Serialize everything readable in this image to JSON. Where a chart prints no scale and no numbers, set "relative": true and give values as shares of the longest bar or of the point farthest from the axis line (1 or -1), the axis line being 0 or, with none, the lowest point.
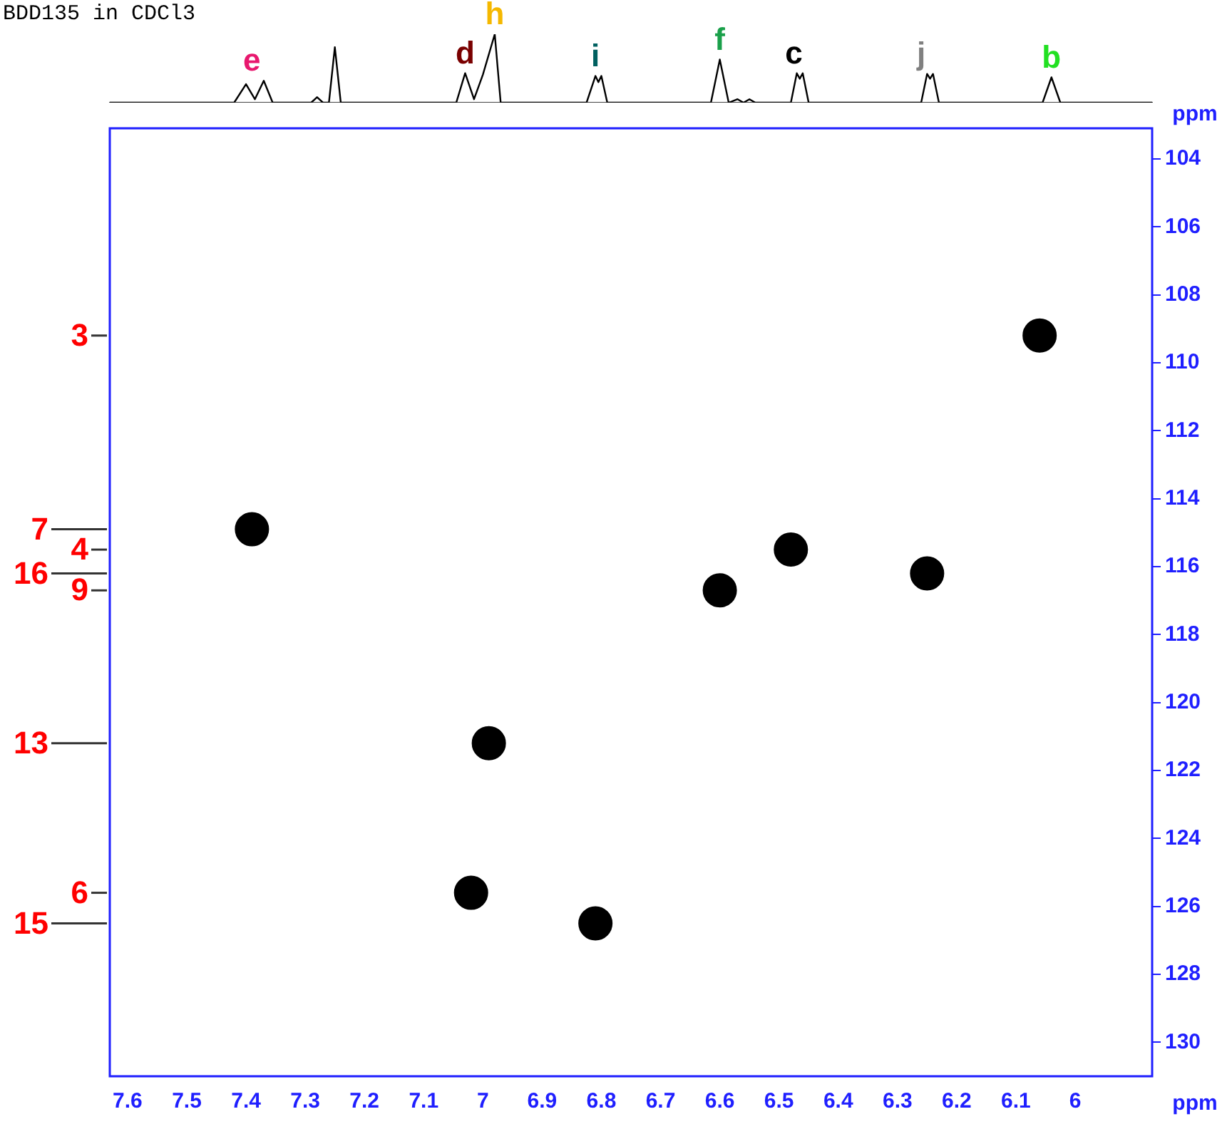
{
  "chart_data": [
    {
      "type": "line",
      "title": "BDD135 in CDCl3",
      "relative": true,
      "tick_labels": false,
      "xlim": [
        7.63,
        5.87
      ],
      "legend": false,
      "grid": false,
      "marker": "none",
      "series": [
        {
          "color": "#000000",
          "x": [
            7.63,
            7.42,
            7.4,
            7.385,
            7.37,
            7.355,
            7.29,
            7.28,
            7.27,
            7.26,
            7.25,
            7.24,
            7.045,
            7.03,
            7.015,
            7.0,
            6.98,
            6.97,
            6.825,
            6.81,
            6.805,
            6.8,
            6.79,
            6.615,
            6.6,
            6.585,
            6.57,
            6.56,
            6.55,
            6.54,
            6.48,
            6.47,
            6.465,
            6.46,
            6.45,
            6.26,
            6.25,
            6.245,
            6.24,
            6.23,
            6.055,
            6.04,
            6.025,
            5.87
          ],
          "values": [
            0,
            0,
            0.27,
            0.05,
            0.32,
            0,
            0,
            0.08,
            0,
            0,
            0.81,
            0,
            0,
            0.43,
            0.05,
            0.41,
            1.0,
            0,
            0,
            0.39,
            0.3,
            0.39,
            0,
            0,
            0.63,
            0,
            0.05,
            0,
            0.05,
            0,
            0,
            0.43,
            0.35,
            0.43,
            0,
            0,
            0.42,
            0.35,
            0.42,
            0,
            0,
            0.37,
            0,
            0
          ]
        }
      ],
      "annotations": [
        {
          "text": "e",
          "x": 7.39,
          "y": 0.32
        },
        {
          "text": "d",
          "x": 7.03,
          "y": 0.43
        },
        {
          "text": "h",
          "x": 6.98,
          "y": 1.0
        },
        {
          "text": "i",
          "x": 6.81,
          "y": 0.39
        },
        {
          "text": "f",
          "x": 6.6,
          "y": 0.63
        },
        {
          "text": "c",
          "x": 6.475,
          "y": 0.43
        },
        {
          "text": "j",
          "x": 6.26,
          "y": 0.42
        },
        {
          "text": "b",
          "x": 6.04,
          "y": 0.37
        }
      ]
    },
    {
      "type": "scatter",
      "xlabel": "ppm",
      "ylabel": "ppm",
      "xlim": [
        7.63,
        5.87
      ],
      "ylim": [
        131.0,
        103.1
      ],
      "xticks": [
        7.6,
        7.5,
        7.4,
        7.3,
        7.2,
        7.1,
        7.0,
        6.9,
        6.8,
        6.7,
        6.6,
        6.5,
        6.4,
        6.3,
        6.2,
        6.1,
        6.0
      ],
      "yticks": [
        104,
        106,
        108,
        110,
        112,
        114,
        116,
        118,
        120,
        122,
        124,
        126,
        128,
        130
      ],
      "legend": false,
      "grid": false,
      "marker": "circle",
      "series": [
        {
          "color": "#000000",
          "x": [
            6.06,
            7.39,
            6.48,
            6.25,
            6.6,
            6.99,
            7.02,
            6.81
          ],
          "values": [
            109.2,
            114.9,
            115.5,
            116.2,
            116.7,
            121.2,
            125.6,
            126.5
          ]
        }
      ],
      "annotations": [
        "3",
        "7",
        "4",
        "16",
        "9",
        "13",
        "6",
        "15"
      ]
    }
  ]
}
